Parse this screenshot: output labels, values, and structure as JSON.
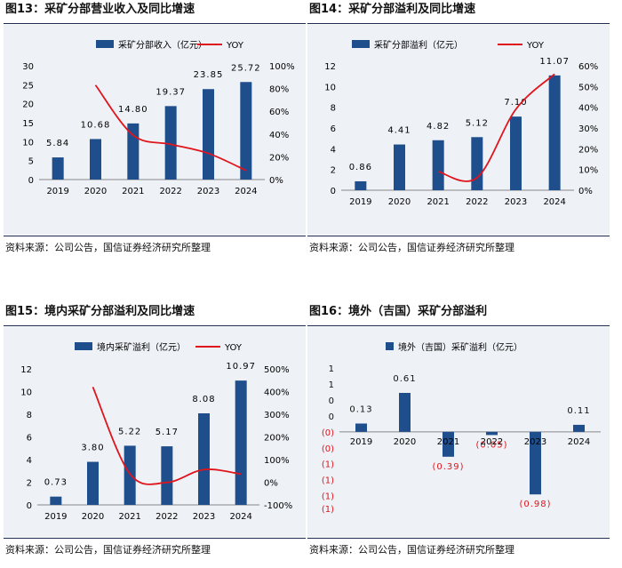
{
  "colors": {
    "bar": "#1f4e8c",
    "line": "#e0141c",
    "neg_label": "#e0141c"
  },
  "charts": [
    {
      "id": "c1",
      "title": "图13：采矿分部营业收入及同比增速",
      "source": "资料来源：公司公告，国信证券经济研究所整理",
      "chart_data": {
        "type": "bar",
        "categories": [
          "2019",
          "2020",
          "2021",
          "2022",
          "2023",
          "2024"
        ],
        "bar_series": {
          "name": "采矿分部收入（亿元）",
          "values": [
            5.84,
            10.68,
            14.8,
            19.37,
            23.85,
            25.72
          ],
          "labels": [
            "5.84",
            "10.68",
            "14.80",
            "19.37",
            "23.85",
            "25.72"
          ]
        },
        "line_series": {
          "name": "YOY",
          "values": [
            null,
            83,
            39,
            31,
            23,
            8
          ]
        },
        "y_left": {
          "min": 0,
          "max": 30,
          "ticks": [
            "0",
            "5",
            "10",
            "15",
            "20",
            "25",
            "30"
          ],
          "tick_values": [
            0,
            5,
            10,
            15,
            20,
            25,
            30
          ]
        },
        "y_right": {
          "min": 0,
          "max": 100,
          "ticks": [
            "0%",
            "20%",
            "40%",
            "60%",
            "80%",
            "100%"
          ],
          "tick_values": [
            0,
            20,
            40,
            60,
            80,
            100
          ]
        }
      }
    },
    {
      "id": "c2",
      "title": "图14：采矿分部溢利及同比增速",
      "source": "资料来源：公司公告，国信证券经济研究所整理",
      "chart_data": {
        "type": "bar",
        "categories": [
          "2019",
          "2020",
          "2021",
          "2022",
          "2023",
          "2024"
        ],
        "bar_series": {
          "name": "采矿分部溢利（亿元）",
          "values": [
            0.86,
            4.41,
            4.82,
            5.12,
            7.1,
            11.07
          ],
          "labels": [
            "0.86",
            "4.41",
            "4.82",
            "5.12",
            "7.10",
            "11.07"
          ]
        },
        "line_series": {
          "name": "YOY",
          "values": [
            null,
            null,
            9,
            6,
            39,
            56
          ]
        },
        "y_left": {
          "min": 0,
          "max": 12,
          "ticks": [
            "0",
            "2",
            "4",
            "6",
            "8",
            "10",
            "12"
          ],
          "tick_values": [
            0,
            2,
            4,
            6,
            8,
            10,
            12
          ]
        },
        "y_right": {
          "min": 0,
          "max": 60,
          "ticks": [
            "0%",
            "10%",
            "20%",
            "30%",
            "40%",
            "50%",
            "60%"
          ],
          "tick_values": [
            0,
            10,
            20,
            30,
            40,
            50,
            60
          ]
        }
      }
    },
    {
      "id": "c3",
      "title": "图15：境内采矿分部溢利及同比增速",
      "source": "资料来源：公司公告，国信证券经济研究所整理",
      "chart_data": {
        "type": "bar",
        "categories": [
          "2019",
          "2020",
          "2021",
          "2022",
          "2023",
          "2024"
        ],
        "bar_series": {
          "name": "境内采矿溢利（亿元）",
          "values": [
            0.73,
            3.8,
            5.22,
            5.17,
            8.08,
            10.97
          ],
          "labels": [
            "0.73",
            "3.80",
            "5.22",
            "5.17",
            "8.08",
            "10.97"
          ]
        },
        "line_series": {
          "name": "YOY",
          "values": [
            null,
            420,
            37,
            -1,
            56,
            36
          ]
        },
        "y_left": {
          "min": 0,
          "max": 12,
          "ticks": [
            "0",
            "2",
            "4",
            "6",
            "8",
            "10",
            "12"
          ],
          "tick_values": [
            0,
            2,
            4,
            6,
            8,
            10,
            12
          ]
        },
        "y_right": {
          "min": -100,
          "max": 500,
          "ticks": [
            "-100%",
            "0%",
            "100%",
            "200%",
            "300%",
            "400%",
            "500%"
          ],
          "tick_values": [
            -100,
            0,
            100,
            200,
            300,
            400,
            500
          ]
        }
      }
    },
    {
      "id": "c4",
      "title": "图16：境外（吉国）采矿分部溢利",
      "source": "资料来源：公司公告，国信证券经济研究所整理",
      "chart_data": {
        "type": "bar",
        "categories": [
          "2019",
          "2020",
          "2021",
          "2022",
          "2023",
          "2024"
        ],
        "bar_series": {
          "name": "境外（吉国）采矿溢利（亿元）",
          "values": [
            0.13,
            0.61,
            -0.39,
            -0.05,
            -0.98,
            0.11
          ],
          "labels": [
            "0.13",
            "0.61",
            "(0.39)",
            "(0.05)",
            "(0.98)",
            "0.11"
          ]
        },
        "y_left": {
          "min": -1.2,
          "max": 1,
          "ticks": [
            "1",
            "1",
            "0",
            "0",
            "(0)",
            "(0)",
            "(1)",
            "(1)",
            "(1)",
            "(1)"
          ],
          "tick_values": [
            1,
            0.75,
            0.5,
            0.25,
            0,
            -0.25,
            -0.5,
            -0.75,
            -1,
            -1.2
          ]
        }
      }
    }
  ]
}
